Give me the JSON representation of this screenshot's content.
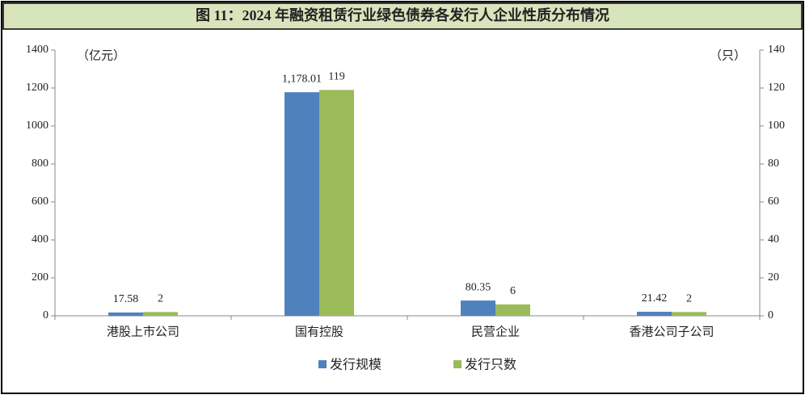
{
  "chart_data": {
    "type": "bar",
    "title": "图 11：2024 年融资租赁行业绿色债券各发行人企业性质分布情况",
    "y_label": "（亿元）",
    "y2_label": "（只）",
    "categories": [
      "港股上市公司",
      "国有控股",
      "民营企业",
      "香港公司子公司"
    ],
    "series": [
      {
        "name": "发行规模",
        "color": "#4f81bd",
        "values": [
          17.58,
          1178.01,
          80.35,
          21.42
        ],
        "value_labels": [
          "17.58",
          "1,178.01",
          "80.35",
          "21.42"
        ]
      },
      {
        "name": "发行只数",
        "color": "#9bbb59",
        "values": [
          2,
          119,
          6,
          2
        ],
        "axis": "y2"
      }
    ],
    "ylim": [
      0,
      1400
    ],
    "yticks": [
      0,
      200,
      400,
      600,
      800,
      1000,
      1200,
      1400
    ],
    "y2lim": [
      0,
      140
    ],
    "y2ticks": [
      0,
      20,
      40,
      60,
      80,
      100,
      120,
      140
    ],
    "grid": false,
    "legend": "bottom"
  }
}
